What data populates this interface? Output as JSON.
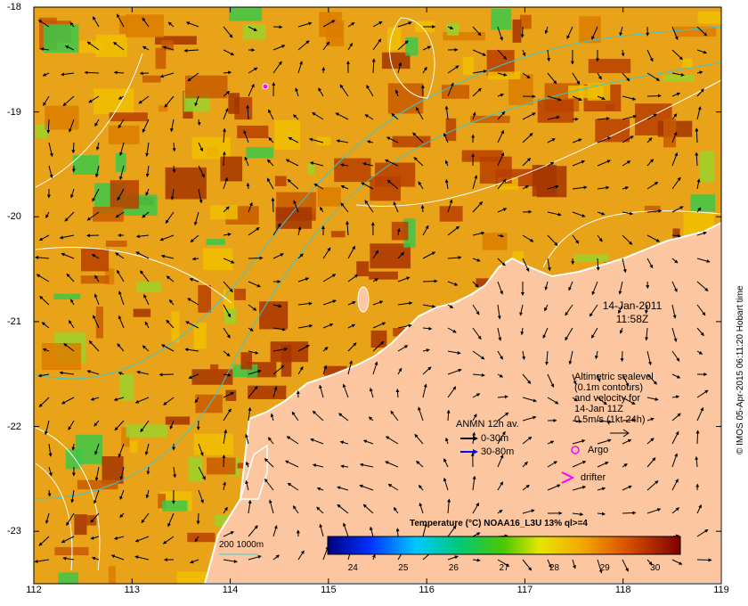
{
  "map": {
    "lon_ticks": [
      "112",
      "113",
      "114",
      "115",
      "116",
      "117",
      "118",
      "119"
    ],
    "lat_ticks": [
      "-18",
      "-19",
      "-20",
      "-21",
      "-22",
      "-23"
    ],
    "lon_range": [
      112,
      119
    ],
    "lat_range": [
      -23.5,
      -18
    ],
    "colors": {
      "land": "#fcc7a0",
      "coast": "#ffffff",
      "isobath": "#3cc8d2",
      "contour": "#ffffff"
    }
  },
  "date": {
    "day": "14-Jan-2011",
    "time": "11:58Z"
  },
  "altimetry": {
    "line1": "Altimetric sealevel",
    "line2": "(0.1m contours)",
    "line3": "and velocity for",
    "line4": "14-Jan 11Z",
    "line5": "0.5m/s (1kt 24h)"
  },
  "anmn": {
    "title": "ANMN 12h av.",
    "shallow": "0-30m",
    "deep": "30-80m",
    "shallow_color": "#000000",
    "deep_color": "#0000ff"
  },
  "markers": {
    "argo": "Argo",
    "drifter": "drifter",
    "marker_color": "#ff00ff"
  },
  "isobath_label": "200  1000m",
  "colorbar": {
    "title": "Temperature (°C) NOAA16_L3U 13% ql>=4",
    "ticks": [
      "24",
      "25",
      "26",
      "27",
      "28",
      "29",
      "30"
    ],
    "range": [
      23.5,
      30.5
    ]
  },
  "credit": "© IMOS 05-Apr-2015 06:11:20 Hobart time"
}
